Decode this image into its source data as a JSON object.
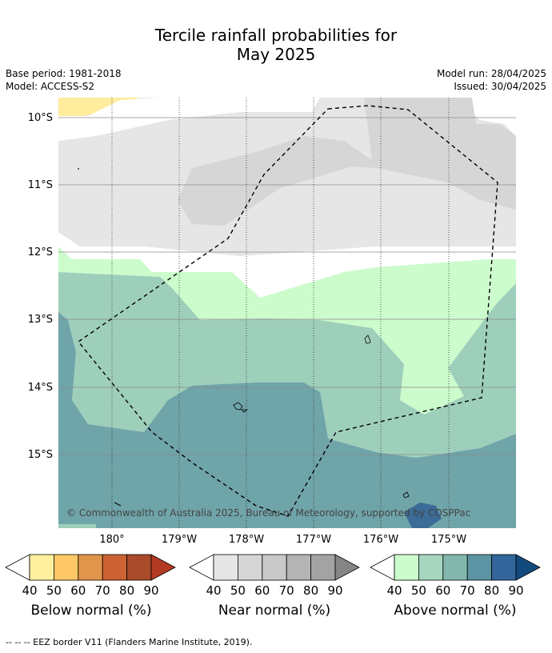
{
  "title_line1": "Tercile rainfall probabilities for",
  "title_line2": "May 2025",
  "base_period": "Base period: 1981-2018",
  "model": "Model: ACCESS-S2",
  "model_run": "Model run: 28/04/2025",
  "issued": "Issued: 30/04/2025",
  "attribution": "© Commonwealth of Australia 2025, Bureau of Meteorology, supported by COSPPac",
  "lat_labels": [
    "10°S",
    "11°S",
    "12°S",
    "13°S",
    "14°S",
    "15°S"
  ],
  "lon_labels": [
    "180°",
    "179°W",
    "178°W",
    "177°W",
    "176°W",
    "175°W"
  ],
  "colorbars": [
    {
      "title": "Below normal (%)",
      "ticks": [
        "40",
        "50",
        "60",
        "70",
        "80",
        "90"
      ],
      "colors": [
        "#fff0a0",
        "#fec866",
        "#e0954a",
        "#cd6233",
        "#a94a2a",
        "#b23a22"
      ]
    },
    {
      "title": "Near normal (%)",
      "ticks": [
        "40",
        "50",
        "60",
        "70",
        "80",
        "90"
      ],
      "colors": [
        "#e6e6e6",
        "#d6d6d6",
        "#c9c9c9",
        "#b4b4b4",
        "#a3a3a3",
        "#858585"
      ]
    },
    {
      "title": "Above normal (%)",
      "ticks": [
        "40",
        "50",
        "60",
        "70",
        "80",
        "90"
      ],
      "colors": [
        "#ccfccc",
        "#a6d6bf",
        "#82b7ae",
        "#5c94a3",
        "#33669a",
        "#134a7e"
      ]
    }
  ],
  "footer": "--  --  -- EEZ border V11 (Flanders Marine Institute, 2019).",
  "map_colors": {
    "white": "#ffffff",
    "near40": "#e6e6e6",
    "near50": "#d6d6d6",
    "below40": "#ffec9c",
    "above40": "#ccfccc",
    "above50": "#9ecfbb",
    "above60": "#6fa4a9",
    "above80": "#3b6b96"
  }
}
